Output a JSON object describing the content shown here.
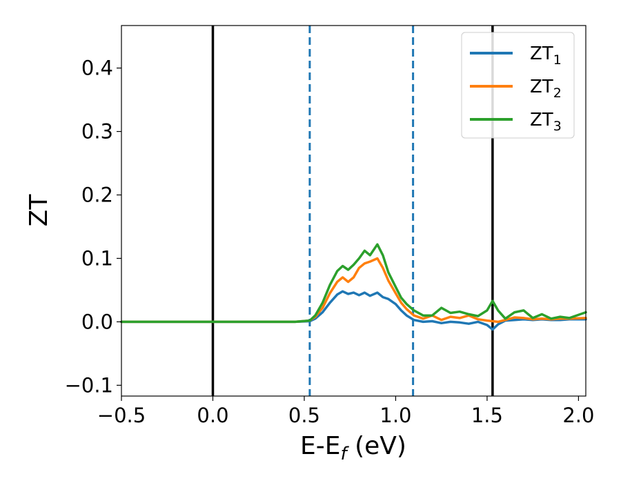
{
  "chart_data": {
    "type": "line",
    "xlabel": {
      "main": "E-E",
      "sub": "f",
      "tail": " (eV)"
    },
    "ylabel": "ZT",
    "xlim": [
      -0.5,
      2.04
    ],
    "ylim": [
      -0.117,
      0.467
    ],
    "x_ticks": [
      -0.5,
      0.0,
      0.5,
      1.0,
      1.5,
      2.0
    ],
    "x_tick_labels": [
      "−0.5",
      "0.0",
      "0.5",
      "1.0",
      "1.5",
      "2.0"
    ],
    "y_ticks": [
      -0.1,
      0.0,
      0.1,
      0.2,
      0.3,
      0.4
    ],
    "y_tick_labels": [
      "−0.1",
      "0.0",
      "0.1",
      "0.2",
      "0.3",
      "0.4"
    ],
    "legend_position": "top-right",
    "vertical_lines": [
      {
        "x": 0.0,
        "style": "solid",
        "color": "#000000"
      },
      {
        "x": 1.53,
        "style": "solid",
        "color": "#000000"
      },
      {
        "x": 0.53,
        "style": "dashed",
        "color": "#1f77b4"
      },
      {
        "x": 1.095,
        "style": "dashed",
        "color": "#1f77b4"
      }
    ],
    "series": [
      {
        "name": "ZT",
        "sub": "1",
        "color": "#1f77b4",
        "x": [
          -0.5,
          0.0,
          0.45,
          0.53,
          0.56,
          0.6,
          0.64,
          0.68,
          0.71,
          0.74,
          0.77,
          0.8,
          0.83,
          0.86,
          0.9,
          0.93,
          0.96,
          1.0,
          1.03,
          1.06,
          1.1,
          1.15,
          1.2,
          1.25,
          1.3,
          1.35,
          1.4,
          1.45,
          1.5,
          1.53,
          1.56,
          1.6,
          1.65,
          1.7,
          1.75,
          1.8,
          1.85,
          1.9,
          1.95,
          2.04
        ],
        "y": [
          0.0,
          0.0,
          0.0,
          0.001,
          0.005,
          0.015,
          0.03,
          0.043,
          0.048,
          0.044,
          0.046,
          0.042,
          0.046,
          0.041,
          0.046,
          0.039,
          0.036,
          0.028,
          0.018,
          0.01,
          0.003,
          0.0,
          0.001,
          -0.002,
          0.0,
          -0.001,
          -0.003,
          0.0,
          -0.005,
          -0.012,
          -0.004,
          0.002,
          0.003,
          0.004,
          0.003,
          0.004,
          0.003,
          0.003,
          0.004,
          0.004
        ]
      },
      {
        "name": "ZT",
        "sub": "2",
        "color": "#ff7f0e",
        "x": [
          -0.5,
          0.0,
          0.45,
          0.53,
          0.56,
          0.6,
          0.64,
          0.68,
          0.71,
          0.74,
          0.77,
          0.8,
          0.83,
          0.86,
          0.9,
          0.93,
          0.96,
          1.0,
          1.03,
          1.06,
          1.1,
          1.15,
          1.2,
          1.25,
          1.3,
          1.35,
          1.4,
          1.45,
          1.5,
          1.53,
          1.56,
          1.6,
          1.65,
          1.7,
          1.75,
          1.8,
          1.85,
          1.9,
          1.95,
          2.04
        ],
        "y": [
          0.0,
          0.0,
          0.0,
          0.002,
          0.008,
          0.022,
          0.045,
          0.063,
          0.07,
          0.063,
          0.07,
          0.085,
          0.092,
          0.095,
          0.1,
          0.085,
          0.065,
          0.045,
          0.03,
          0.02,
          0.01,
          0.005,
          0.01,
          0.003,
          0.008,
          0.006,
          0.01,
          0.004,
          0.002,
          0.001,
          0.0,
          0.003,
          0.007,
          0.006,
          0.004,
          0.005,
          0.004,
          0.005,
          0.005,
          0.006
        ]
      },
      {
        "name": "ZT",
        "sub": "3",
        "color": "#2ca02c",
        "x": [
          -0.5,
          0.0,
          0.45,
          0.53,
          0.56,
          0.6,
          0.64,
          0.68,
          0.71,
          0.74,
          0.77,
          0.8,
          0.83,
          0.86,
          0.9,
          0.93,
          0.96,
          1.0,
          1.03,
          1.06,
          1.1,
          1.15,
          1.2,
          1.25,
          1.3,
          1.35,
          1.4,
          1.45,
          1.5,
          1.53,
          1.56,
          1.6,
          1.65,
          1.7,
          1.75,
          1.8,
          1.85,
          1.9,
          1.95,
          2.04
        ],
        "y": [
          0.0,
          0.0,
          0.0,
          0.002,
          0.01,
          0.03,
          0.058,
          0.08,
          0.088,
          0.082,
          0.09,
          0.1,
          0.112,
          0.105,
          0.122,
          0.105,
          0.078,
          0.055,
          0.038,
          0.028,
          0.018,
          0.01,
          0.01,
          0.022,
          0.014,
          0.016,
          0.012,
          0.009,
          0.018,
          0.033,
          0.018,
          0.005,
          0.015,
          0.018,
          0.006,
          0.012,
          0.005,
          0.008,
          0.006,
          0.015
        ]
      }
    ]
  }
}
